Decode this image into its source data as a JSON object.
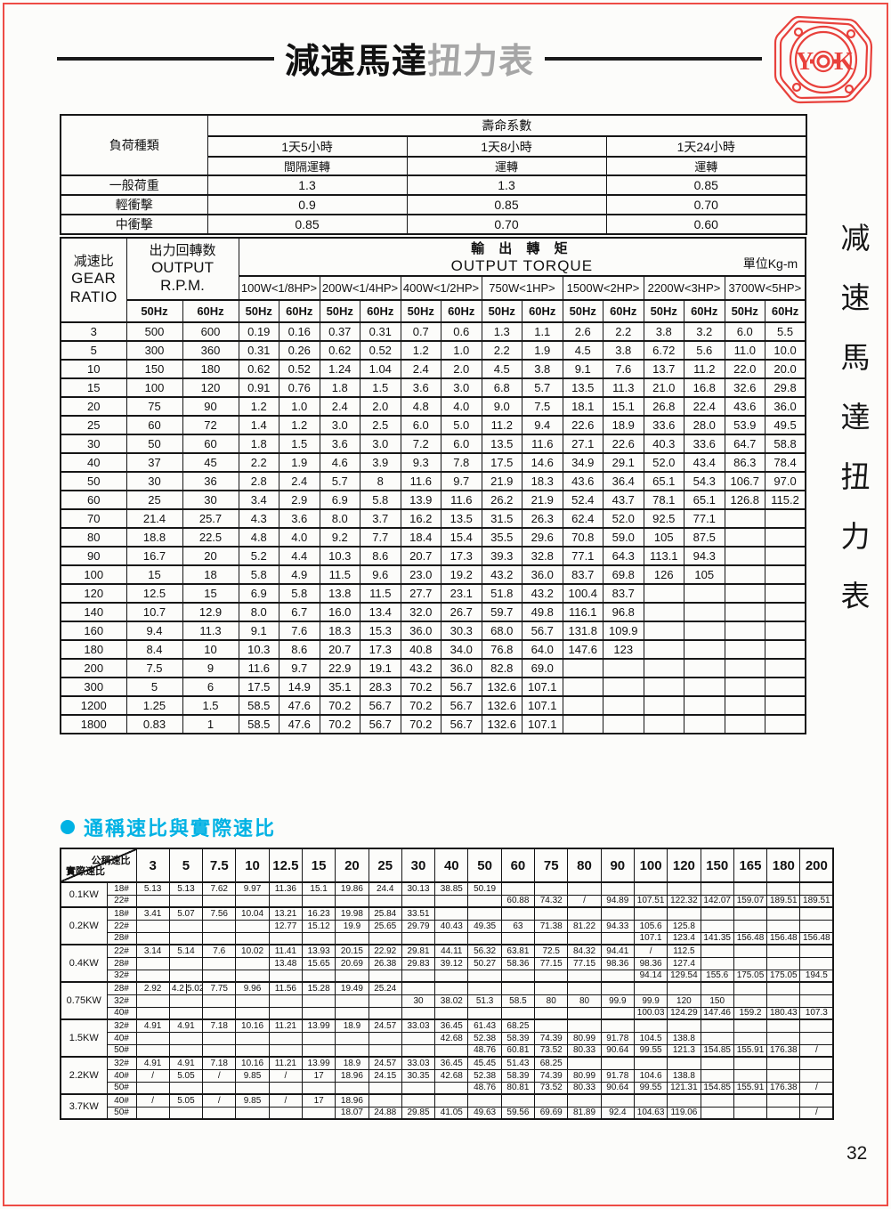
{
  "page": {
    "title_black": "減速馬達",
    "title_gray": "扭力表",
    "side_title": "减速馬達扭力表",
    "page_number": "32",
    "logo_left": "Y",
    "logo_right": "K",
    "accent_red": "#ee4c45",
    "accent_cyan": "#00b2e4"
  },
  "life_table": {
    "corner": "負荷種類",
    "header": "壽命系數",
    "cols": [
      "1天5小時",
      "1天8小時",
      "1天24小時"
    ],
    "subcols": [
      "間隔運轉",
      "運轉",
      "運轉"
    ],
    "rows": [
      {
        "label": "一般荷重",
        "values": [
          "1.3",
          "1.3",
          "0.85"
        ]
      },
      {
        "label": "輕衝擊",
        "values": [
          "0.9",
          "0.85",
          "0.70"
        ]
      },
      {
        "label": "中衝擊",
        "values": [
          "0.85",
          "0.70",
          "0.60"
        ]
      }
    ]
  },
  "torque_table": {
    "gear_label": "减速比",
    "gear_label_en1": "GEAR",
    "gear_label_en2": "RATIO",
    "rpm_label": "出力回轉数",
    "rpm_label_en1": "OUTPUT",
    "rpm_label_en2": "R.P.M.",
    "torque_label": "輸 出 轉 矩",
    "torque_label_en": "OUTPUT TORQUE",
    "unit": "單位Kg-m",
    "hz": [
      "50Hz",
      "60Hz"
    ],
    "watt_cols": [
      "100W<1/8HP>",
      "200W<1/4HP>",
      "400W<1/2HP>",
      "750W<1HP>",
      "1500W<2HP>",
      "2200W<3HP>",
      "3700W<5HP>"
    ],
    "rows": [
      {
        "ratio": "3",
        "cells": [
          "500",
          "600",
          "0.19",
          "0.16",
          "0.37",
          "0.31",
          "0.7",
          "0.6",
          "1.3",
          "1.1",
          "2.6",
          "2.2",
          "3.8",
          "3.2",
          "6.0",
          "5.5"
        ]
      },
      {
        "ratio": "5",
        "cells": [
          "300",
          "360",
          "0.31",
          "0.26",
          "0.62",
          "0.52",
          "1.2",
          "1.0",
          "2.2",
          "1.9",
          "4.5",
          "3.8",
          "6.72",
          "5.6",
          "11.0",
          "10.0"
        ]
      },
      {
        "ratio": "10",
        "cells": [
          "150",
          "180",
          "0.62",
          "0.52",
          "1.24",
          "1.04",
          "2.4",
          "2.0",
          "4.5",
          "3.8",
          "9.1",
          "7.6",
          "13.7",
          "11.2",
          "22.0",
          "20.0"
        ]
      },
      {
        "ratio": "15",
        "cells": [
          "100",
          "120",
          "0.91",
          "0.76",
          "1.8",
          "1.5",
          "3.6",
          "3.0",
          "6.8",
          "5.7",
          "13.5",
          "11.3",
          "21.0",
          "16.8",
          "32.6",
          "29.8"
        ]
      },
      {
        "ratio": "20",
        "cells": [
          "75",
          "90",
          "1.2",
          "1.0",
          "2.4",
          "2.0",
          "4.8",
          "4.0",
          "9.0",
          "7.5",
          "18.1",
          "15.1",
          "26.8",
          "22.4",
          "43.6",
          "36.0"
        ]
      },
      {
        "ratio": "25",
        "cells": [
          "60",
          "72",
          "1.4",
          "1.2",
          "3.0",
          "2.5",
          "6.0",
          "5.0",
          "11.2",
          "9.4",
          "22.6",
          "18.9",
          "33.6",
          "28.0",
          "53.9",
          "49.5"
        ]
      },
      {
        "ratio": "30",
        "cells": [
          "50",
          "60",
          "1.8",
          "1.5",
          "3.6",
          "3.0",
          "7.2",
          "6.0",
          "13.5",
          "11.6",
          "27.1",
          "22.6",
          "40.3",
          "33.6",
          "64.7",
          "58.8"
        ]
      },
      {
        "ratio": "40",
        "cells": [
          "37",
          "45",
          "2.2",
          "1.9",
          "4.6",
          "3.9",
          "9.3",
          "7.8",
          "17.5",
          "14.6",
          "34.9",
          "29.1",
          "52.0",
          "43.4",
          "86.3",
          "78.4"
        ]
      },
      {
        "ratio": "50",
        "cells": [
          "30",
          "36",
          "2.8",
          "2.4",
          "5.7",
          "8",
          "11.6",
          "9.7",
          "21.9",
          "18.3",
          "43.6",
          "36.4",
          "65.1",
          "54.3",
          "106.7",
          "97.0"
        ]
      },
      {
        "ratio": "60",
        "cells": [
          "25",
          "30",
          "3.4",
          "2.9",
          "6.9",
          "5.8",
          "13.9",
          "11.6",
          "26.2",
          "21.9",
          "52.4",
          "43.7",
          "78.1",
          "65.1",
          "126.8",
          "115.2"
        ]
      },
      {
        "ratio": "70",
        "cells": [
          "21.4",
          "25.7",
          "4.3",
          "3.6",
          "8.0",
          "3.7",
          "16.2",
          "13.5",
          "31.5",
          "26.3",
          "62.4",
          "52.0",
          "92.5",
          "77.1",
          "",
          ""
        ]
      },
      {
        "ratio": "80",
        "cells": [
          "18.8",
          "22.5",
          "4.8",
          "4.0",
          "9.2",
          "7.7",
          "18.4",
          "15.4",
          "35.5",
          "29.6",
          "70.8",
          "59.0",
          "105",
          "87.5",
          "",
          ""
        ]
      },
      {
        "ratio": "90",
        "cells": [
          "16.7",
          "20",
          "5.2",
          "4.4",
          "10.3",
          "8.6",
          "20.7",
          "17.3",
          "39.3",
          "32.8",
          "77.1",
          "64.3",
          "113.1",
          "94.3",
          "",
          ""
        ]
      },
      {
        "ratio": "100",
        "cells": [
          "15",
          "18",
          "5.8",
          "4.9",
          "11.5",
          "9.6",
          "23.0",
          "19.2",
          "43.2",
          "36.0",
          "83.7",
          "69.8",
          "126",
          "105",
          "",
          ""
        ]
      },
      {
        "ratio": "120",
        "cells": [
          "12.5",
          "15",
          "6.9",
          "5.8",
          "13.8",
          "11.5",
          "27.7",
          "23.1",
          "51.8",
          "43.2",
          "100.4",
          "83.7",
          "",
          "",
          "",
          ""
        ]
      },
      {
        "ratio": "140",
        "cells": [
          "10.7",
          "12.9",
          "8.0",
          "6.7",
          "16.0",
          "13.4",
          "32.0",
          "26.7",
          "59.7",
          "49.8",
          "116.1",
          "96.8",
          "",
          "",
          "",
          ""
        ]
      },
      {
        "ratio": "160",
        "cells": [
          "9.4",
          "11.3",
          "9.1",
          "7.6",
          "18.3",
          "15.3",
          "36.0",
          "30.3",
          "68.0",
          "56.7",
          "131.8",
          "109.9",
          "",
          "",
          "",
          ""
        ]
      },
      {
        "ratio": "180",
        "cells": [
          "8.4",
          "10",
          "10.3",
          "8.6",
          "20.7",
          "17.3",
          "40.8",
          "34.0",
          "76.8",
          "64.0",
          "147.6",
          "123",
          "",
          "",
          "",
          ""
        ]
      },
      {
        "ratio": "200",
        "cells": [
          "7.5",
          "9",
          "11.6",
          "9.7",
          "22.9",
          "19.1",
          "43.2",
          "36.0",
          "82.8",
          "69.0",
          "",
          "",
          "",
          "",
          "",
          ""
        ]
      },
      {
        "ratio": "300",
        "cells": [
          "5",
          "6",
          "17.5",
          "14.9",
          "35.1",
          "28.3",
          "70.2",
          "56.7",
          "132.6",
          "107.1",
          "",
          "",
          "",
          "",
          "",
          ""
        ]
      },
      {
        "ratio": "1200",
        "cells": [
          "1.25",
          "1.5",
          "58.5",
          "47.6",
          "70.2",
          "56.7",
          "70.2",
          "56.7",
          "132.6",
          "107.1",
          "",
          "",
          "",
          "",
          "",
          ""
        ]
      },
      {
        "ratio": "1800",
        "cells": [
          "0.83",
          "1",
          "58.5",
          "47.6",
          "70.2",
          "56.7",
          "70.2",
          "56.7",
          "132.6",
          "107.1",
          "",
          "",
          "",
          "",
          "",
          ""
        ]
      }
    ]
  },
  "ratio_section": {
    "title": "通稱速比與實際速比",
    "corner_top": "公稱速比",
    "corner_bottom": "實際速比",
    "cols": [
      "3",
      "5",
      "7.5",
      "10",
      "12.5",
      "15",
      "20",
      "25",
      "30",
      "40",
      "50",
      "60",
      "75",
      "80",
      "90",
      "100",
      "120",
      "150",
      "165",
      "180",
      "200"
    ],
    "groups": [
      {
        "kw": "0.1KW",
        "rows": [
          {
            "frame": "18#",
            "cells": [
              "5.13",
              "5.13",
              "7.62",
              "9.97",
              "11.36",
              "15.1",
              "19.86",
              "24.4",
              "30.13",
              "38.85",
              "50.19",
              "",
              "",
              "",
              "",
              "",
              "",
              "",
              "",
              "",
              ""
            ]
          },
          {
            "frame": "22#",
            "cells": [
              "",
              "",
              "",
              "",
              "",
              "",
              "",
              "",
              "",
              "",
              "",
              "60.88",
              "74.32",
              "/",
              "94.89",
              "107.51",
              "122.32",
              "142.07",
              "159.07",
              "189.51",
              "189.51"
            ]
          }
        ]
      },
      {
        "kw": "0.2KW",
        "rows": [
          {
            "frame": "18#",
            "cells": [
              "3.41",
              "5.07",
              "7.56",
              "10.04",
              "13.21",
              "16.23",
              "19.98",
              "25.84",
              "33.51",
              "",
              "",
              "",
              "",
              "",
              "",
              "",
              "",
              "",
              "",
              "",
              ""
            ]
          },
          {
            "frame": "22#",
            "cells": [
              "",
              "",
              "",
              "",
              "12.77",
              "15.12",
              "19.9",
              "25.65",
              "29.79",
              "40.43",
              "49.35",
              "63",
              "71.38",
              "81.22",
              "94.33",
              "105.6",
              "125.8",
              "",
              "",
              "",
              ""
            ]
          },
          {
            "frame": "28#",
            "cells": [
              "",
              "",
              "",
              "",
              "",
              "",
              "",
              "",
              "",
              "",
              "",
              "",
              "",
              "",
              "",
              "107.1",
              "123.4",
              "141.35",
              "156.48",
              "156.48",
              "156.48"
            ]
          }
        ]
      },
      {
        "kw": "0.4KW",
        "rows": [
          {
            "frame": "22#",
            "cells": [
              "3.14",
              "5.14",
              "7.6",
              "10.02",
              "11.41",
              "13.93",
              "20.15",
              "22.92",
              "29.81",
              "44.11",
              "56.32",
              "63.81",
              "72.5",
              "84.32",
              "94.41",
              "/",
              "112.5",
              "",
              "",
              "",
              ""
            ]
          },
          {
            "frame": "28#",
            "cells": [
              "",
              "",
              "",
              "",
              "13.48",
              "15.65",
              "20.69",
              "26.38",
              "29.83",
              "39.12",
              "50.27",
              "58.36",
              "77.15",
              "77.15",
              "98.36",
              "98.36",
              "127.4",
              "",
              "",
              "",
              ""
            ]
          },
          {
            "frame": "32#",
            "cells": [
              "",
              "",
              "",
              "",
              "",
              "",
              "",
              "",
              "",
              "",
              "",
              "",
              "",
              "",
              "",
              "94.14",
              "129.54",
              "155.6",
              "175.05",
              "175.05",
              "194.5"
            ]
          }
        ]
      },
      {
        "kw": "0.75KW",
        "rows": [
          {
            "frame": "28#",
            "cells": [
              "2.92",
              "4.2|5.02",
              "7.75",
              "9.96",
              "11.56",
              "15.28",
              "19.49",
              "25.24",
              "",
              "",
              "",
              "",
              "",
              "",
              "",
              "",
              "",
              "",
              "",
              "",
              ""
            ]
          },
          {
            "frame": "32#",
            "cells": [
              "",
              "",
              "",
              "",
              "",
              "",
              "",
              "",
              "30",
              "38.02",
              "51.3",
              "58.5",
              "80",
              "80",
              "99.9",
              "99.9",
              "120",
              "150",
              "",
              "",
              ""
            ]
          },
          {
            "frame": "40#",
            "cells": [
              "",
              "",
              "",
              "",
              "",
              "",
              "",
              "",
              "",
              "",
              "",
              "",
              "",
              "",
              "",
              "100.03",
              "124.29",
              "147.46",
              "159.2",
              "180.43",
              "107.3"
            ]
          }
        ]
      },
      {
        "kw": "1.5KW",
        "rows": [
          {
            "frame": "32#",
            "cells": [
              "4.91",
              "4.91",
              "7.18",
              "10.16",
              "11.21",
              "13.99",
              "18.9",
              "24.57",
              "33.03",
              "36.45",
              "61.43",
              "68.25",
              "",
              "",
              "",
              "",
              "",
              "",
              "",
              "",
              ""
            ]
          },
          {
            "frame": "40#",
            "cells": [
              "",
              "",
              "",
              "",
              "",
              "",
              "",
              "",
              "",
              "42.68",
              "52.38",
              "58.39",
              "74.39",
              "80.99",
              "91.78",
              "104.5",
              "138.8",
              "",
              "",
              "",
              ""
            ]
          },
          {
            "frame": "50#",
            "cells": [
              "",
              "",
              "",
              "",
              "",
              "",
              "",
              "",
              "",
              "",
              "48.76",
              "60.81",
              "73.52",
              "80.33",
              "90.64",
              "99.55",
              "121.3",
              "154.85",
              "155.91",
              "176.38",
              "/"
            ]
          }
        ]
      },
      {
        "kw": "2.2KW",
        "rows": [
          {
            "frame": "32#",
            "cells": [
              "4.91",
              "4.91",
              "7.18",
              "10.16",
              "11.21",
              "13.99",
              "18.9",
              "24.57",
              "33.03",
              "36.45",
              "45.45",
              "51.43",
              "68.25",
              "",
              "",
              "",
              "",
              "",
              "",
              "",
              ""
            ]
          },
          {
            "frame": "40#",
            "cells": [
              "/",
              "5.05",
              "/",
              "9.85",
              "/",
              "17",
              "18.96",
              "24.15",
              "30.35",
              "42.68",
              "52.38",
              "58.39",
              "74.39",
              "80.99",
              "91.78",
              "104.6",
              "138.8",
              "",
              "",
              "",
              ""
            ]
          },
          {
            "frame": "50#",
            "cells": [
              "",
              "",
              "",
              "",
              "",
              "",
              "",
              "",
              "",
              "",
              "48.76",
              "80.81",
              "73.52",
              "80.33",
              "90.64",
              "99.55",
              "121.31",
              "154.85",
              "155.91",
              "176.38",
              "/"
            ]
          }
        ]
      },
      {
        "kw": "3.7KW",
        "rows": [
          {
            "frame": "40#",
            "cells": [
              "/",
              "5.05",
              "/",
              "9.85",
              "/",
              "17",
              "18.96",
              "",
              "",
              "",
              "",
              "",
              "",
              "",
              "",
              "",
              "",
              "",
              "",
              "",
              ""
            ]
          },
          {
            "frame": "50#",
            "cells": [
              "",
              "",
              "",
              "",
              "",
              "",
              "18.07",
              "24.88",
              "29.85",
              "41.05",
              "49.63",
              "59.56",
              "69.69",
              "81.89",
              "92.4",
              "104.63",
              "119.06",
              "",
              "",
              "",
              "/"
            ]
          }
        ]
      }
    ]
  }
}
